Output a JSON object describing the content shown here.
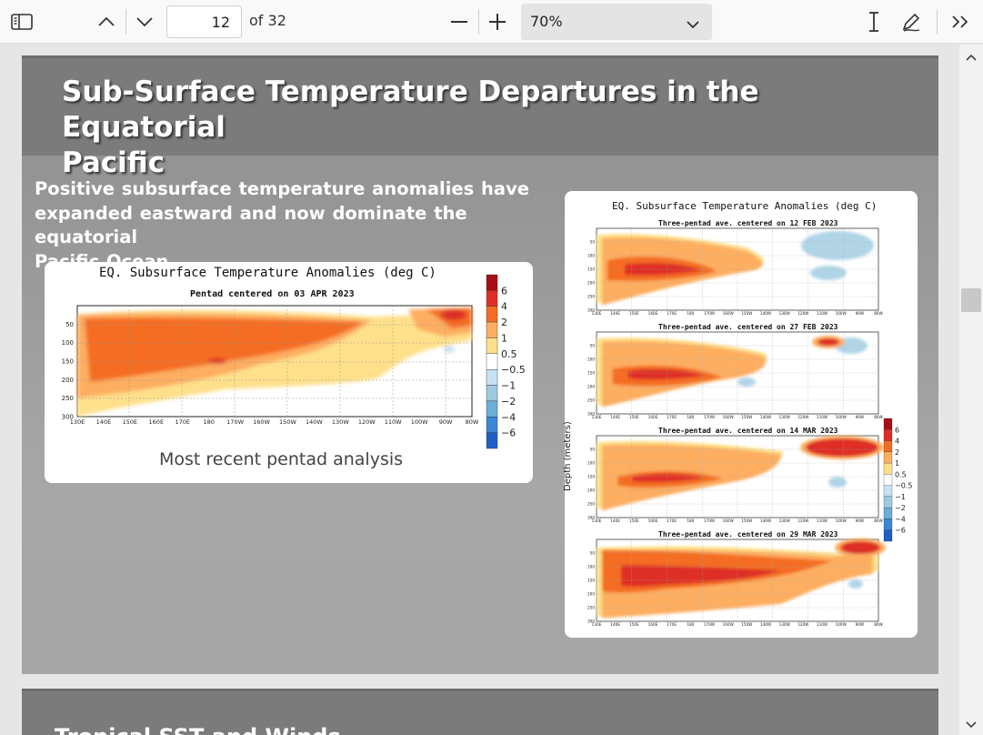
{
  "toolbar": {
    "page_current": "12",
    "page_total_label": "of 32",
    "zoom_value": "70%",
    "icons": [
      "sidebar-toggle-icon",
      "chevron-up-icon",
      "chevron-down-icon",
      "zoom-out-icon",
      "zoom-in-icon",
      "text-select-icon",
      "draw-icon",
      "more-tools-icon"
    ]
  },
  "slide": {
    "title_line1": "Sub-Surface Temperature Departures in the Equatorial",
    "title_line2": "Pacific",
    "body_line1": "Positive subsurface temperature anomalies have",
    "body_line2": "expanded eastward and now dominate the equatorial",
    "body_line3": "Pacific Ocean.",
    "caption": "Most recent pentad analysis"
  },
  "main_chart": {
    "title": "EQ. Subsurface Temperature Anomalies (deg C)",
    "subtitle": "Pentad centered on 03 APR 2023"
  },
  "side_chart": {
    "title": "EQ. Subsurface Temperature Anomalies (deg C)",
    "ylabel": "Depth (meters)",
    "panel_titles": [
      "Three-pentad ave. centered on 12 FEB 2023",
      "Three-pentad ave. centered on 27 FEB 2023",
      "Three-pentad ave. centered on 14 MAR 2023",
      "Three-pentad ave. centered on 29 MAR 2023"
    ]
  },
  "chart_data": [
    {
      "type": "heatmap",
      "title": "EQ. Subsurface Temperature Anomalies (deg C)",
      "subtitle": "Pentad centered on 03 APR 2023",
      "x_tick_labels": [
        "130E",
        "140E",
        "150E",
        "160E",
        "170E",
        "180",
        "170W",
        "160W",
        "150W",
        "140W",
        "130W",
        "120W",
        "110W",
        "100W",
        "90W",
        "80W"
      ],
      "y_tick_labels": [
        "50",
        "100",
        "150",
        "200",
        "250",
        "300"
      ],
      "ylim": [
        300,
        0
      ],
      "colorbar_labels": [
        "6",
        "4",
        "2",
        "1",
        "0.5",
        "−0.5",
        "−1",
        "−2",
        "−4",
        "−6"
      ],
      "colorbar_colors": [
        "#a50f15",
        "#de2d26",
        "#f46d24",
        "#fdae61",
        "#fee08b",
        "#ffffff",
        "#c6e2f5",
        "#9ecae1",
        "#6baed6",
        "#3a87d6",
        "#1f5fc4"
      ]
    },
    {
      "type": "heatmap",
      "title": "EQ. Subsurface Temperature Anomalies (deg C)",
      "panels": [
        "12 FEB 2023",
        "27 FEB 2023",
        "14 MAR 2023",
        "29 MAR 2023"
      ],
      "ylabel": "Depth (meters)",
      "x_tick_labels": [
        "130E",
        "140E",
        "150E",
        "160E",
        "170E",
        "180",
        "170W",
        "160W",
        "150W",
        "140W",
        "130W",
        "120W",
        "110W",
        "100W",
        "90W",
        "80W"
      ],
      "y_tick_labels": [
        "50",
        "100",
        "150",
        "200",
        "250",
        "300"
      ],
      "colorbar_labels": [
        "6",
        "4",
        "2",
        "1",
        "0.5",
        "−0.5",
        "−1",
        "−2",
        "−4",
        "−6"
      ]
    }
  ],
  "next_slide": {
    "title_partial": "Tropical SST and Winds"
  }
}
